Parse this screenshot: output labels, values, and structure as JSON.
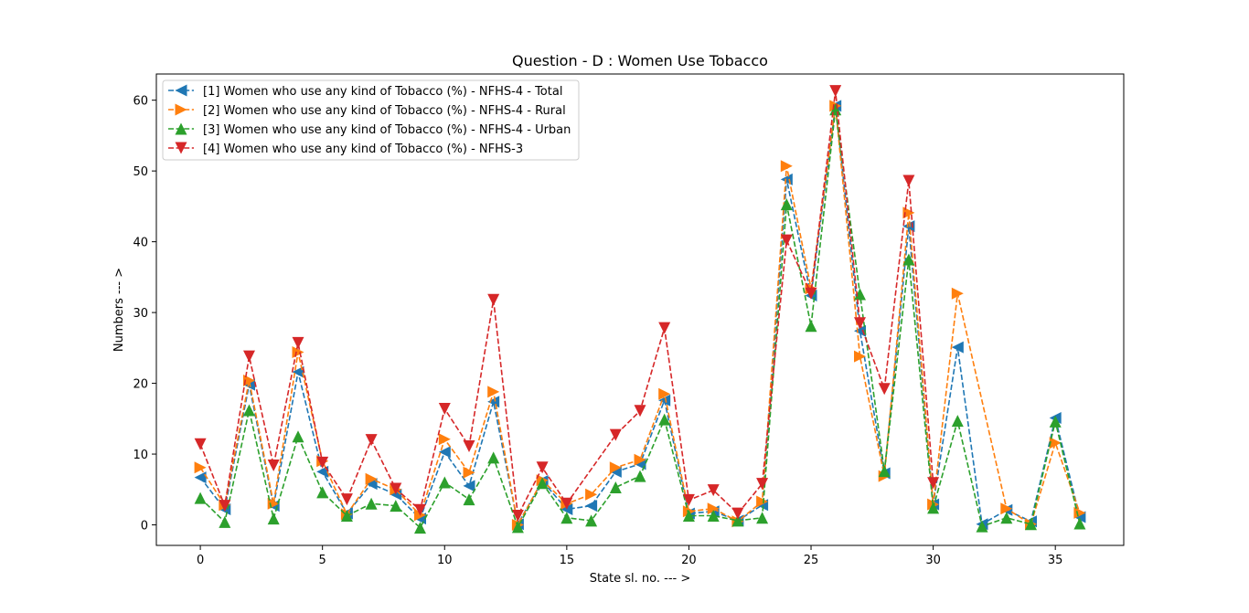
{
  "chart_data": {
    "type": "line",
    "title": "Question - D : Women Use Tobacco",
    "xlabel": "State sl. no. --- >",
    "ylabel": "Numbers --- >",
    "xlim": [
      -1.8,
      37.8
    ],
    "ylim": [
      -2.9,
      63.7
    ],
    "xticks": [
      0,
      5,
      10,
      15,
      20,
      25,
      30,
      35
    ],
    "yticks": [
      0,
      10,
      20,
      30,
      40,
      50,
      60
    ],
    "grid": false,
    "legend_position": "top-left",
    "series": [
      {
        "name": "[1] Women who use any kind of Tobacco (%) - NFHS-4 - Total",
        "color": "#1f77b4",
        "marker": "triangle-left",
        "points": [
          [
            0,
            6.7
          ],
          [
            1,
            2.2
          ],
          [
            2,
            19.8
          ],
          [
            3,
            2.7
          ],
          [
            4,
            21.6
          ],
          [
            5,
            7.5
          ],
          [
            6,
            1.6
          ],
          [
            7,
            5.8
          ],
          [
            8,
            4.3
          ],
          [
            9,
            0.9
          ],
          [
            10,
            10.3
          ],
          [
            11,
            5.5
          ],
          [
            12,
            17.4
          ],
          [
            13,
            0.1
          ],
          [
            14,
            6.2
          ],
          [
            15,
            2.2
          ],
          [
            16,
            2.7
          ],
          [
            17,
            7.5
          ],
          [
            18,
            8.6
          ],
          [
            19,
            17.6
          ],
          [
            20,
            1.6
          ],
          [
            21,
            1.9
          ],
          [
            22,
            0.6
          ],
          [
            23,
            2.8
          ],
          [
            24,
            48.8
          ],
          [
            25,
            32.4
          ],
          [
            26,
            59.2
          ],
          [
            27,
            27.4
          ],
          [
            28,
            7.3
          ],
          [
            29,
            42.2
          ],
          [
            30,
            2.9
          ],
          [
            31,
            25.1
          ],
          [
            32,
            0.1
          ],
          [
            33,
            2.1
          ],
          [
            34,
            0.5
          ],
          [
            35,
            15.1
          ],
          [
            36,
            1.1
          ]
        ]
      },
      {
        "name": "[2] Women who use any kind of Tobacco (%) - NFHS-4 - Rural",
        "color": "#ff7f0e",
        "marker": "triangle-right",
        "points": [
          [
            0,
            8.1
          ],
          [
            1,
            2.8
          ],
          [
            2,
            20.4
          ],
          [
            3,
            3.0
          ],
          [
            4,
            24.4
          ],
          [
            5,
            9.0
          ],
          [
            6,
            1.5
          ],
          [
            7,
            6.5
          ],
          [
            8,
            5.0
          ],
          [
            9,
            1.4
          ],
          [
            10,
            12.1
          ],
          [
            11,
            7.4
          ],
          [
            12,
            18.8
          ],
          [
            13,
            0.0
          ],
          [
            14,
            6.3
          ],
          [
            15,
            3.0
          ],
          [
            16,
            4.3
          ],
          [
            17,
            8.1
          ],
          [
            18,
            9.2
          ],
          [
            19,
            18.5
          ],
          [
            20,
            1.9
          ],
          [
            21,
            2.3
          ],
          [
            22,
            0.5
          ],
          [
            23,
            3.3
          ],
          [
            24,
            50.7
          ],
          [
            25,
            33.4
          ],
          [
            26,
            59.2
          ],
          [
            27,
            23.8
          ],
          [
            28,
            6.9
          ],
          [
            29,
            44.1
          ],
          [
            30,
            2.9
          ],
          [
            31,
            32.7
          ],
          [
            33,
            2.3
          ],
          [
            34,
            0.1
          ],
          [
            35,
            11.6
          ],
          [
            36,
            1.7
          ]
        ]
      },
      {
        "name": "[3] Women who use any kind of Tobacco (%) - NFHS-4 - Urban",
        "color": "#2ca02c",
        "marker": "triangle-up",
        "points": [
          [
            0,
            3.8
          ],
          [
            1,
            0.4
          ],
          [
            2,
            16.2
          ],
          [
            3,
            0.9
          ],
          [
            4,
            12.5
          ],
          [
            5,
            4.6
          ],
          [
            6,
            1.3
          ],
          [
            7,
            3.0
          ],
          [
            8,
            2.7
          ],
          [
            9,
            -0.4
          ],
          [
            10,
            6.0
          ],
          [
            11,
            3.6
          ],
          [
            12,
            9.5
          ],
          [
            13,
            -0.3
          ],
          [
            14,
            5.9
          ],
          [
            15,
            1.0
          ],
          [
            16,
            0.6
          ],
          [
            17,
            5.3
          ],
          [
            18,
            6.9
          ],
          [
            19,
            14.9
          ],
          [
            20,
            1.3
          ],
          [
            21,
            1.3
          ],
          [
            22,
            0.6
          ],
          [
            23,
            1.0
          ],
          [
            24,
            45.3
          ],
          [
            25,
            28.1
          ],
          [
            26,
            58.7
          ],
          [
            27,
            32.6
          ],
          [
            28,
            7.6
          ],
          [
            29,
            37.5
          ],
          [
            30,
            2.4
          ],
          [
            31,
            14.7
          ],
          [
            32,
            -0.2
          ],
          [
            33,
            1.0
          ],
          [
            34,
            0.1
          ],
          [
            35,
            14.6
          ],
          [
            36,
            0.2
          ]
        ]
      },
      {
        "name": "[4] Women who use any kind of Tobacco (%) - NFHS-3",
        "color": "#d62728",
        "marker": "triangle-down",
        "points": [
          [
            0,
            11.4
          ],
          [
            1,
            2.7
          ],
          [
            2,
            23.8
          ],
          [
            3,
            8.4
          ],
          [
            4,
            25.7
          ],
          [
            5,
            8.8
          ],
          [
            6,
            3.6
          ],
          [
            7,
            12.0
          ],
          [
            8,
            5.1
          ],
          [
            9,
            2.1
          ],
          [
            10,
            16.4
          ],
          [
            11,
            11.1
          ],
          [
            12,
            31.8
          ],
          [
            13,
            1.3
          ],
          [
            14,
            8.1
          ],
          [
            15,
            3.0
          ],
          [
            17,
            12.7
          ],
          [
            18,
            16.1
          ],
          [
            19,
            27.8
          ],
          [
            20,
            3.5
          ],
          [
            21,
            4.9
          ],
          [
            22,
            1.6
          ],
          [
            23,
            5.8
          ],
          [
            24,
            40.2
          ],
          [
            25,
            32.7
          ],
          [
            26,
            61.3
          ],
          [
            27,
            28.5
          ],
          [
            28,
            19.2
          ],
          [
            29,
            48.6
          ],
          [
            30,
            5.9
          ]
        ]
      }
    ]
  }
}
